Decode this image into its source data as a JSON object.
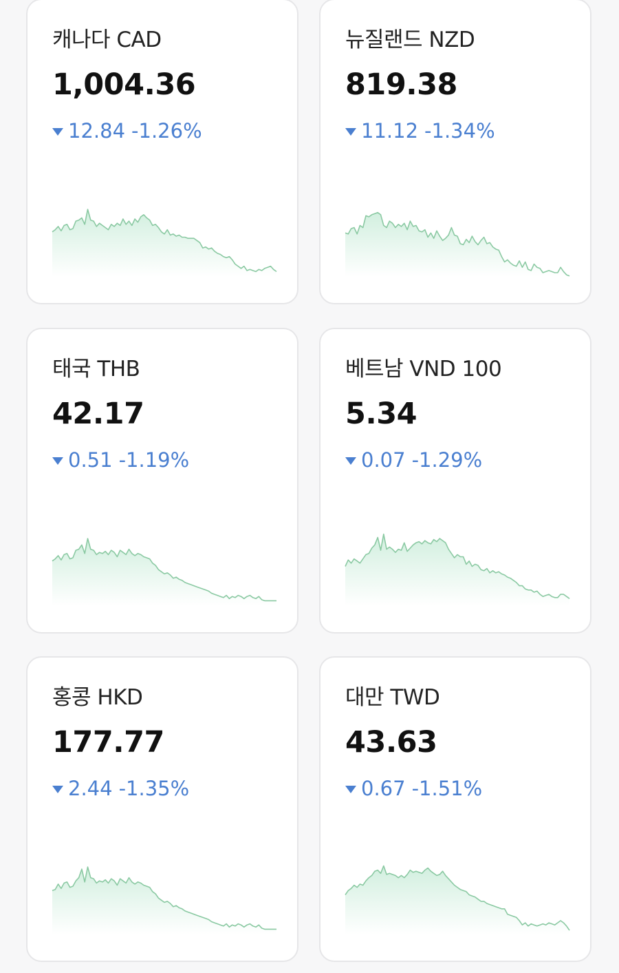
{
  "colors": {
    "down": "#4a7fd0",
    "sparkline_stroke": "#8ac9a2",
    "sparkline_fill": "#cfeedd",
    "card_border": "#e6e6e8",
    "background": "#f7f7f8"
  },
  "icons": {
    "change_direction": "triangle-down-icon"
  },
  "currencies": [
    {
      "name": "캐나다 CAD",
      "rate": "1,004.36",
      "change": "12.84",
      "change_pct": "-1.26%",
      "direction": "down",
      "sparkline": [
        62,
        60,
        57,
        61,
        56,
        55,
        60,
        59,
        52,
        51,
        49,
        55,
        41,
        51,
        52,
        57,
        54,
        56,
        58,
        60,
        55,
        57,
        54,
        56,
        50,
        55,
        52,
        56,
        50,
        53,
        48,
        46,
        49,
        51,
        56,
        55,
        58,
        62,
        64,
        60,
        65,
        64,
        66,
        65,
        67,
        67,
        68,
        68,
        68,
        70,
        72,
        77,
        76,
        78,
        77,
        80,
        82,
        83,
        85,
        86,
        85,
        88,
        92,
        94,
        96,
        94,
        98,
        97,
        98,
        99,
        97,
        98,
        96,
        95,
        94,
        97,
        99
      ]
    },
    {
      "name": "뉴질랜드 NZD",
      "rate": "819.38",
      "change": "11.12",
      "change_pct": "-1.34%",
      "direction": "down",
      "sparkline": [
        63,
        64,
        59,
        58,
        64,
        56,
        58,
        47,
        48,
        46,
        45,
        44,
        46,
        56,
        58,
        52,
        54,
        58,
        55,
        57,
        54,
        60,
        52,
        57,
        56,
        61,
        62,
        60,
        67,
        63,
        68,
        61,
        66,
        70,
        68,
        65,
        58,
        65,
        66,
        73,
        74,
        69,
        72,
        66,
        71,
        74,
        70,
        67,
        73,
        72,
        76,
        78,
        79,
        85,
        90,
        88,
        91,
        93,
        94,
        89,
        95,
        90,
        97,
        98,
        92,
        95,
        96,
        100,
        99,
        98,
        99,
        100,
        100,
        95,
        99,
        102,
        103
      ]
    },
    {
      "name": "태국 THB",
      "rate": "42.17",
      "change": "0.51",
      "change_pct": "-1.19%",
      "direction": "down",
      "sparkline": [
        62,
        60,
        57,
        61,
        56,
        55,
        60,
        59,
        52,
        51,
        47,
        55,
        41,
        51,
        52,
        56,
        54,
        55,
        53,
        56,
        52,
        54,
        58,
        52,
        54,
        56,
        51,
        55,
        57,
        55,
        56,
        58,
        59,
        60,
        64,
        66,
        70,
        72,
        74,
        73,
        75,
        78,
        77,
        79,
        80,
        82,
        83,
        84,
        85,
        86,
        87,
        88,
        89,
        90,
        92,
        93,
        94,
        95,
        96,
        94,
        97,
        95,
        96,
        94,
        95,
        97,
        95,
        94,
        96,
        97,
        95,
        98,
        99,
        99,
        99,
        99,
        99
      ]
    },
    {
      "name": "베트남 VND 100",
      "rate": "5.34",
      "change": "0.07",
      "change_pct": "-1.29%",
      "direction": "down",
      "sparkline": [
        67,
        61,
        64,
        60,
        62,
        64,
        60,
        56,
        55,
        50,
        47,
        40,
        52,
        37,
        51,
        49,
        51,
        54,
        51,
        52,
        45,
        53,
        50,
        47,
        45,
        44,
        46,
        43,
        45,
        46,
        42,
        44,
        41,
        43,
        45,
        51,
        55,
        59,
        56,
        58,
        58,
        65,
        62,
        67,
        65,
        66,
        70,
        71,
        69,
        73,
        71,
        73,
        72,
        74,
        75,
        77,
        78,
        80,
        82,
        85,
        85,
        88,
        89,
        89,
        91,
        90,
        93,
        95,
        94,
        93,
        95,
        96,
        96,
        93,
        93,
        95,
        97
      ]
    },
    {
      "name": "홍콩 HKD",
      "rate": "177.77",
      "change": "2.44",
      "change_pct": "-1.35%",
      "direction": "down",
      "sparkline": [
        63,
        62,
        57,
        61,
        56,
        55,
        60,
        59,
        54,
        51,
        43,
        55,
        41,
        51,
        52,
        56,
        54,
        55,
        53,
        56,
        52,
        54,
        58,
        52,
        54,
        56,
        51,
        55,
        57,
        55,
        56,
        58,
        59,
        60,
        64,
        66,
        70,
        72,
        74,
        73,
        75,
        78,
        77,
        79,
        80,
        82,
        83,
        84,
        85,
        86,
        87,
        88,
        89,
        90,
        92,
        93,
        94,
        95,
        96,
        94,
        97,
        95,
        96,
        94,
        95,
        97,
        95,
        94,
        96,
        97,
        95,
        98,
        99,
        99,
        99,
        99,
        99
      ]
    },
    {
      "name": "대만 TWD",
      "rate": "43.63",
      "change": "0.67",
      "change_pct": "-1.51%",
      "direction": "down",
      "sparkline": [
        67,
        63,
        61,
        58,
        60,
        57,
        58,
        54,
        51,
        49,
        45,
        44,
        47,
        40,
        48,
        47,
        48,
        49,
        51,
        49,
        51,
        48,
        44,
        46,
        45,
        46,
        47,
        44,
        42,
        45,
        47,
        49,
        48,
        45,
        49,
        52,
        55,
        58,
        60,
        62,
        63,
        64,
        67,
        68,
        69,
        71,
        73,
        73,
        75,
        76,
        77,
        78,
        79,
        80,
        80,
        85,
        86,
        87,
        88,
        91,
        95,
        93,
        96,
        94,
        95,
        96,
        95,
        94,
        95,
        93,
        94,
        95,
        93,
        91,
        93,
        96,
        100
      ]
    }
  ]
}
